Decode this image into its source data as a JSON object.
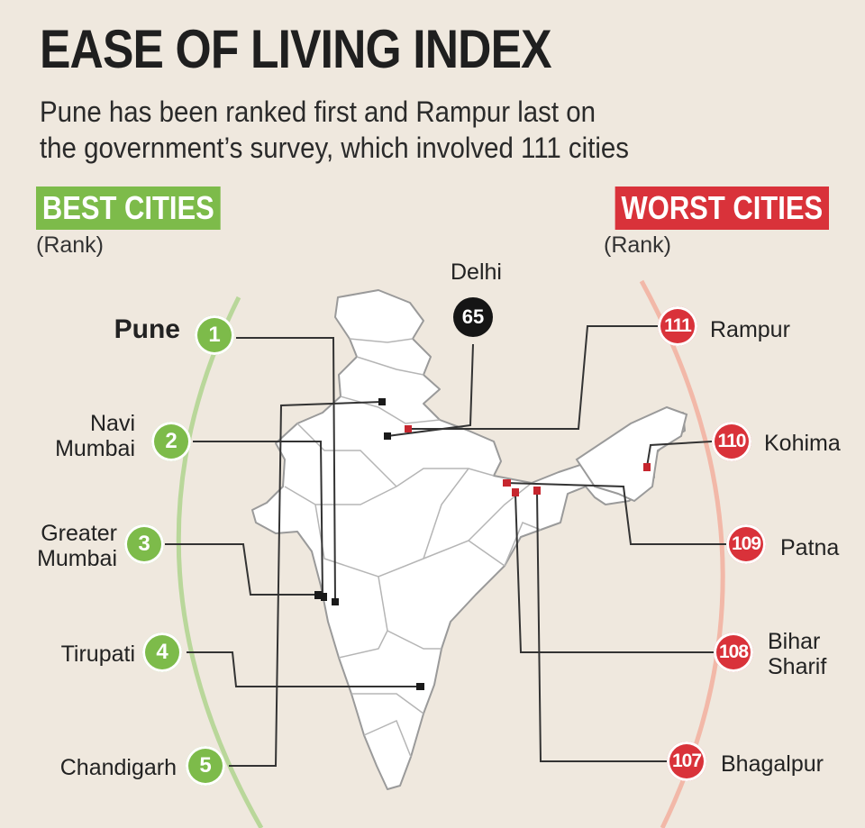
{
  "title": "EASE OF LIVING INDEX",
  "subtitle_line1": "Pune has been ranked first and Rampur last on",
  "subtitle_line2": "the government’s survey, which involved 111 cities",
  "best": {
    "heading": "BEST CITIES",
    "rank_note": "(Rank)",
    "color": "#7dbb4a",
    "cities": [
      {
        "name": "Pune",
        "rank": "1"
      },
      {
        "name_line1": "Navi",
        "name_line2": "Mumbai",
        "rank": "2"
      },
      {
        "name_line1": "Greater",
        "name_line2": "Mumbai",
        "rank": "3"
      },
      {
        "name": "Tirupati",
        "rank": "4"
      },
      {
        "name": "Chandigarh",
        "rank": "5"
      }
    ]
  },
  "worst": {
    "heading": "WORST CITIES",
    "rank_note": "(Rank)",
    "color": "#d9323a",
    "cities": [
      {
        "name": "Rampur",
        "rank": "111"
      },
      {
        "name": "Kohima",
        "rank": "110"
      },
      {
        "name": "Patna",
        "rank": "109"
      },
      {
        "name_line1": "Bihar",
        "name_line2": "Sharif",
        "rank": "108"
      },
      {
        "name": "Bhagalpur",
        "rank": "107"
      }
    ]
  },
  "delhi": {
    "name": "Delhi",
    "rank": "65"
  }
}
